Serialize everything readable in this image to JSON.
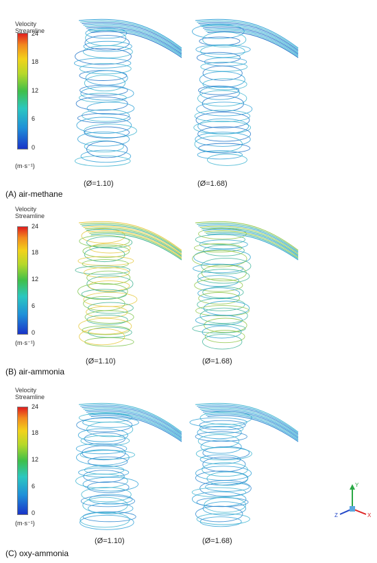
{
  "legend": {
    "title_line1": "Velocity",
    "title_line2": "Streamline",
    "ticks": [
      "24",
      "18",
      "12",
      "6",
      "0"
    ],
    "unit": "(m·s⁻¹)",
    "colormap": [
      "#1a34c8",
      "#1f8fd8",
      "#2bc7c0",
      "#3fbf4a",
      "#b5d82a",
      "#f2d21b",
      "#f28a1e",
      "#e01e1e"
    ]
  },
  "panels": [
    {
      "id": "A",
      "label": "(A) air-methane",
      "cases": [
        "(Ø=1.10)",
        "(Ø=1.68)"
      ],
      "colors": {
        "left": [
          "#2a9fd6",
          "#3ab3d0",
          "#1e73c8"
        ],
        "right": [
          "#2a9fd6",
          "#3ab3d0",
          "#1e73c8"
        ]
      }
    },
    {
      "id": "B",
      "label": "(B) air-ammonia",
      "cases": [
        "(Ø=1.10)",
        "(Ø=1.68)"
      ],
      "colors": {
        "left": [
          "#e5c83a",
          "#7cc44a",
          "#39b08e"
        ],
        "right": [
          "#8fc646",
          "#3fb59a",
          "#2da3cf"
        ]
      }
    },
    {
      "id": "C",
      "label": "(C) oxy-ammonia",
      "cases": [
        "(Ø=1.10)",
        "(Ø=1.68)"
      ],
      "colors": {
        "left": [
          "#3ab3d0",
          "#2a9fd6",
          "#2c86cf"
        ],
        "right": [
          "#3ab3d0",
          "#2a9fd6",
          "#2c86cf"
        ]
      }
    }
  ],
  "axes": {
    "x": "X",
    "y": "Y",
    "z": "Z"
  }
}
